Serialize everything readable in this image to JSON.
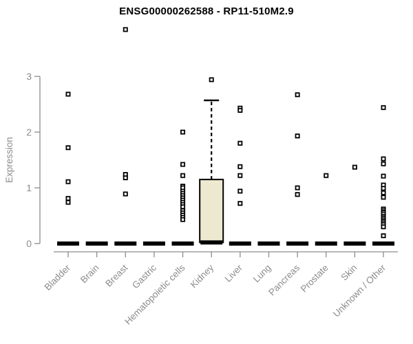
{
  "chart_data": {
    "type": "boxplot",
    "title": "ENSG00000262588 - RP11-510M2.9",
    "ylabel": "Expression",
    "ylim": [
      0,
      3
    ],
    "yticks": [
      0,
      1,
      2,
      3
    ],
    "grid": false,
    "legend": "none",
    "categories": [
      "Bladder",
      "Brain",
      "Breast",
      "Gastric",
      "Hematopoietic cells",
      "Kidney",
      "Liver",
      "Lung",
      "Pancreas",
      "Prostate",
      "Skin",
      "Unknown / Other"
    ],
    "series": [
      {
        "category": "Bladder",
        "median": 0,
        "q1": 0,
        "q3": 0,
        "whisker_high": 0,
        "points": [
          2.68,
          1.72,
          1.11,
          0.81,
          0.74
        ]
      },
      {
        "category": "Brain",
        "median": 0,
        "q1": 0,
        "q3": 0,
        "whisker_high": 0,
        "points": []
      },
      {
        "category": "Breast",
        "median": 0,
        "q1": 0,
        "q3": 0,
        "whisker_high": 0,
        "points": [
          3.84,
          1.24,
          1.18,
          0.89
        ]
      },
      {
        "category": "Gastric",
        "median": 0,
        "q1": 0,
        "q3": 0,
        "whisker_high": 0,
        "points": []
      },
      {
        "category": "Hematopoietic cells",
        "median": 0,
        "q1": 0,
        "q3": 0,
        "whisker_high": 0,
        "points": [
          2.0,
          1.42,
          1.22,
          1.03,
          1.0,
          0.94,
          0.9,
          0.86,
          0.82,
          0.78,
          0.74,
          0.7,
          0.66,
          0.59,
          0.55,
          0.51,
          0.47,
          0.43
        ]
      },
      {
        "category": "Kidney",
        "median": 0.02,
        "q1": 0.02,
        "q3": 1.15,
        "whisker_high": 2.57,
        "points": [
          2.94
        ]
      },
      {
        "category": "Liver",
        "median": 0,
        "q1": 0,
        "q3": 0,
        "whisker_high": 0,
        "points": [
          2.43,
          2.39,
          1.8,
          1.38,
          1.22,
          0.94,
          0.72
        ]
      },
      {
        "category": "Lung",
        "median": 0,
        "q1": 0,
        "q3": 0,
        "whisker_high": 0,
        "points": []
      },
      {
        "category": "Pancreas",
        "median": 0,
        "q1": 0,
        "q3": 0,
        "whisker_high": 0,
        "points": [
          2.67,
          1.93,
          1.0,
          0.88
        ]
      },
      {
        "category": "Prostate",
        "median": 0,
        "q1": 0,
        "q3": 0,
        "whisker_high": 0,
        "points": [
          1.22
        ]
      },
      {
        "category": "Skin",
        "median": 0,
        "q1": 0,
        "q3": 0,
        "whisker_high": 0,
        "points": [
          1.37
        ]
      },
      {
        "category": "Unknown / Other",
        "median": 0,
        "q1": 0,
        "q3": 0,
        "whisker_high": 0,
        "points": [
          2.44,
          1.52,
          1.43,
          1.21,
          1.05,
          0.99,
          0.91,
          0.83,
          0.62,
          0.59,
          0.56,
          0.53,
          0.49,
          0.46,
          0.43,
          0.4,
          0.37,
          0.34,
          0.3,
          0.14
        ]
      }
    ],
    "colors": {
      "background": "#ffffff",
      "title": "#000000",
      "axis": "#8c8c8c",
      "tick_label": "#8c8c8c",
      "box_fill": "#ede8d0",
      "box_border": "#000000",
      "median_bar": "#000000",
      "marker": "#000000",
      "marker_center": "#ffffff"
    }
  }
}
